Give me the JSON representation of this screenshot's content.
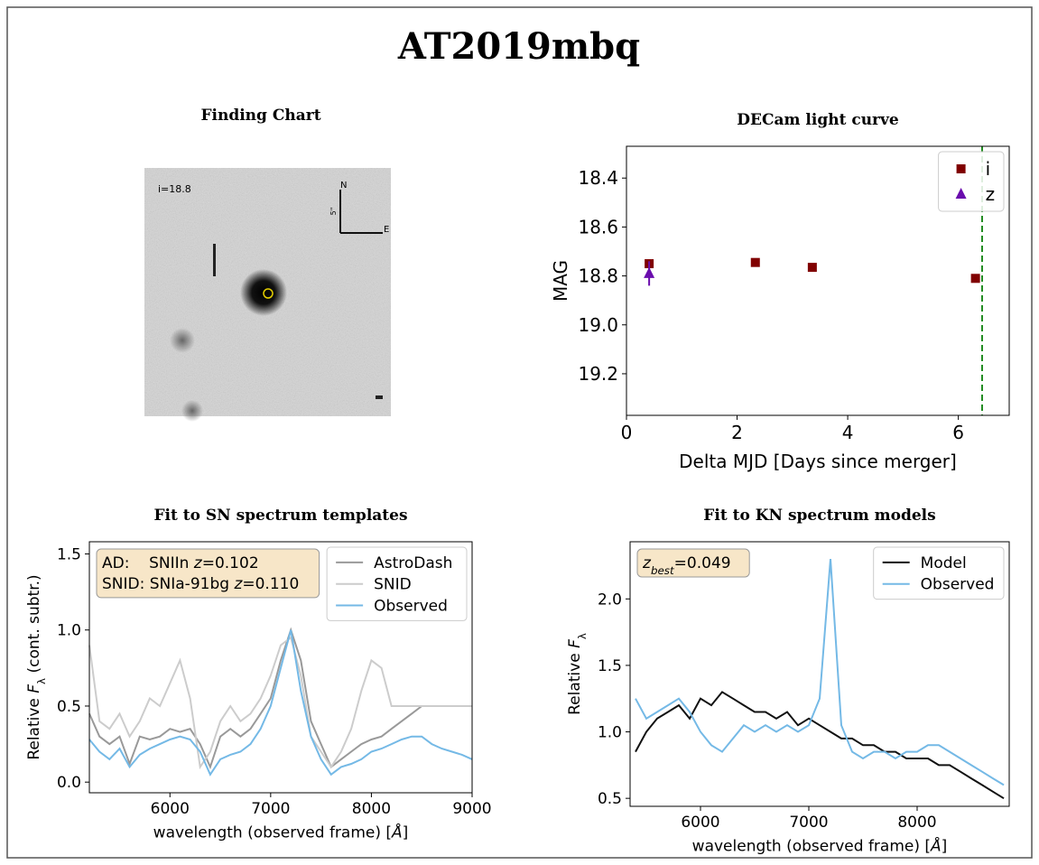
{
  "title": "AT2019mbq",
  "finding_chart": {
    "title": "Finding Chart",
    "mag_label": "i=18.8",
    "north": "N",
    "east": "E",
    "scale": "5\""
  },
  "chart_data": [
    {
      "type": "scatter",
      "title": "DECam light curve",
      "xlabel": [
        {
          "text": "Delta MJD [Days since merger]"
        }
      ],
      "ylabel": [
        {
          "text": "MAG"
        }
      ],
      "xlim": [
        0,
        6.92
      ],
      "ylim": [
        18.27,
        19.37
      ],
      "y_inverted": true,
      "xticks": [
        0,
        2,
        4,
        6
      ],
      "yticks": [
        18.4,
        18.6,
        18.8,
        {
          "value": 19,
          "label": "19.0"
        },
        19.2
      ],
      "legend": "upper right",
      "vline": {
        "x": 6.43,
        "color": "#228b22",
        "dashed": true
      },
      "series": [
        {
          "name": "i",
          "color": "#800000",
          "marker": "s",
          "x": [
            0.41,
            2.33,
            3.36,
            6.31
          ],
          "values": [
            18.75,
            18.745,
            18.765,
            18.81
          ]
        },
        {
          "name": "z",
          "color": "#6a0dad",
          "marker": "^",
          "x": [
            0.41
          ],
          "values": [
            18.79
          ],
          "errors": [
            0.05
          ]
        }
      ]
    },
    {
      "type": "line",
      "title": "Fit to SN spectrum templates",
      "xlabel": [
        {
          "text": "wavelength (observed frame) ["
        },
        {
          "text": "Å",
          "italic": true
        },
        {
          "text": "]"
        }
      ],
      "ylabel": [
        {
          "text": "Relative "
        },
        {
          "text": "F",
          "italic": true
        },
        {
          "text": "λ",
          "sub": true
        },
        {
          "text": " (cont. subtr.)"
        }
      ],
      "xlim": [
        5200,
        9000
      ],
      "ylim": [
        -0.07,
        1.58
      ],
      "xticks": [
        6000,
        7000,
        8000,
        9000
      ],
      "yticks": [
        {
          "value": 0,
          "label": "0.0"
        },
        0.5,
        {
          "value": 1,
          "label": "1.0"
        },
        1.5
      ],
      "legend": "upper right",
      "annotation": [
        [
          {
            "text": "AD:    SNIIn "
          },
          {
            "text": "z",
            "italic": true
          },
          {
            "text": "=0.102"
          }
        ],
        [
          {
            "text": "SNID: SNIa-91bg "
          },
          {
            "text": "z",
            "italic": true
          },
          {
            "text": "=0.110"
          }
        ]
      ],
      "x": [
        5200,
        5300,
        5400,
        5500,
        5600,
        5700,
        5800,
        5900,
        6000,
        6100,
        6200,
        6300,
        6400,
        6500,
        6600,
        6700,
        6800,
        6900,
        7000,
        7100,
        7200,
        7300,
        7400,
        7500,
        7600,
        7700,
        7800,
        7900,
        8000,
        8100,
        8200,
        8300,
        8400,
        8500,
        8600,
        8700,
        8800,
        8900,
        9000
      ],
      "series": [
        {
          "name": "AstroDash",
          "color": "#999999",
          "values": [
            0.45,
            0.3,
            0.25,
            0.3,
            0.12,
            0.3,
            0.28,
            0.3,
            0.35,
            0.33,
            0.35,
            0.25,
            0.1,
            0.3,
            0.35,
            0.3,
            0.35,
            0.45,
            0.55,
            0.8,
            1.0,
            0.8,
            0.4,
            0.25,
            0.1,
            0.15,
            0.2,
            0.25,
            0.28,
            0.3,
            0.35,
            0.4,
            0.45,
            0.5,
            null,
            null,
            null,
            null,
            null
          ]
        },
        {
          "name": "SNID",
          "color": "#cccccc",
          "values": [
            0.9,
            0.4,
            0.35,
            0.45,
            0.3,
            0.4,
            0.55,
            0.5,
            0.65,
            0.8,
            0.55,
            0.1,
            0.2,
            0.4,
            0.5,
            0.4,
            0.45,
            0.55,
            0.7,
            0.9,
            0.95,
            0.7,
            0.3,
            0.2,
            0.1,
            0.2,
            0.35,
            0.6,
            0.8,
            0.75,
            0.5,
            0.5,
            0.5,
            0.5,
            0.5,
            0.5,
            0.5,
            0.5,
            0.5
          ]
        },
        {
          "name": "Observed",
          "color": "#74b9e6",
          "values": [
            0.28,
            0.2,
            0.15,
            0.22,
            0.1,
            0.18,
            0.22,
            0.25,
            0.28,
            0.3,
            0.28,
            0.2,
            0.05,
            0.15,
            0.18,
            0.2,
            0.25,
            0.35,
            0.5,
            0.75,
            1.0,
            0.6,
            0.3,
            0.15,
            0.05,
            0.1,
            0.12,
            0.15,
            0.2,
            0.22,
            0.25,
            0.28,
            0.3,
            0.3,
            0.25,
            0.22,
            0.2,
            0.18,
            0.15
          ]
        }
      ]
    },
    {
      "type": "line",
      "title": "Fit to KN spectrum models",
      "xlabel": [
        {
          "text": "wavelength (observed frame) ["
        },
        {
          "text": "Å",
          "italic": true
        },
        {
          "text": "]"
        }
      ],
      "ylabel": [
        {
          "text": "Relative "
        },
        {
          "text": "F",
          "italic": true
        },
        {
          "text": "λ",
          "sub": true
        }
      ],
      "xlim": [
        5350,
        8850
      ],
      "ylim": [
        0.44,
        2.43
      ],
      "xticks": [
        6000,
        7000,
        8000
      ],
      "yticks": [
        0.5,
        {
          "value": 1,
          "label": "1.0"
        },
        1.5,
        {
          "value": 2,
          "label": "2.0"
        }
      ],
      "legend": "upper right",
      "annotation": [
        [
          {
            "text": "z",
            "italic": true
          },
          {
            "text": "best",
            "sub": true,
            "italic": true
          },
          {
            "text": "=0.049"
          }
        ]
      ],
      "x": [
        5400,
        5500,
        5600,
        5700,
        5800,
        5900,
        6000,
        6100,
        6200,
        6300,
        6400,
        6500,
        6600,
        6700,
        6800,
        6900,
        7000,
        7100,
        7200,
        7300,
        7400,
        7500,
        7600,
        7700,
        7800,
        7900,
        8000,
        8100,
        8200,
        8300,
        8400,
        8500,
        8600,
        8700,
        8800
      ],
      "series": [
        {
          "name": "Model",
          "color": "#111111",
          "values": [
            0.85,
            1.0,
            1.1,
            1.15,
            1.2,
            1.1,
            1.25,
            1.2,
            1.3,
            1.25,
            1.2,
            1.15,
            1.15,
            1.1,
            1.15,
            1.05,
            1.1,
            1.05,
            1.0,
            0.95,
            0.95,
            0.9,
            0.9,
            0.85,
            0.85,
            0.8,
            0.8,
            0.8,
            0.75,
            0.75,
            0.7,
            0.65,
            0.6,
            0.55,
            0.5
          ]
        },
        {
          "name": "Observed",
          "color": "#74b9e6",
          "values": [
            1.25,
            1.1,
            1.15,
            1.2,
            1.25,
            1.15,
            1.0,
            0.9,
            0.85,
            0.95,
            1.05,
            1.0,
            1.05,
            1.0,
            1.05,
            1.0,
            1.05,
            1.25,
            2.3,
            1.05,
            0.85,
            0.8,
            0.85,
            0.85,
            0.8,
            0.85,
            0.85,
            0.9,
            0.9,
            0.85,
            0.8,
            0.75,
            0.7,
            0.65,
            0.6
          ]
        }
      ]
    }
  ]
}
